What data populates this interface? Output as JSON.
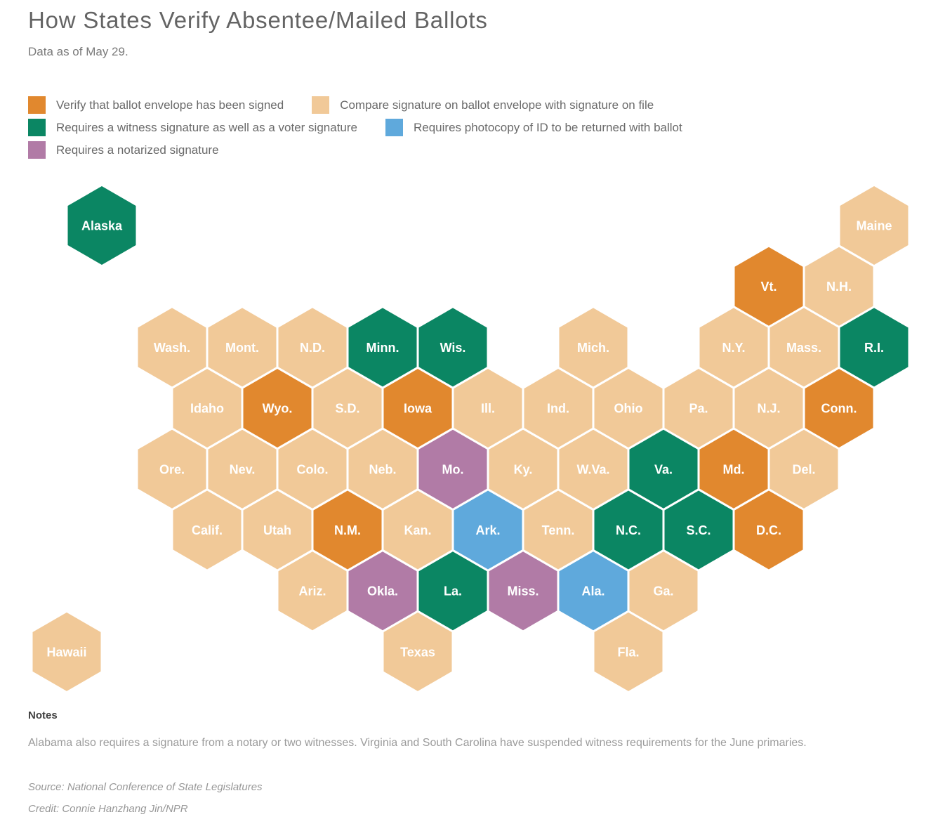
{
  "header": {
    "title": "How States Verify Absentee/Mailed Ballots",
    "subtitle": "Data as of May 29."
  },
  "legend": {
    "items": [
      {
        "key": "envelope_signed",
        "label": "Verify that ballot envelope has been signed",
        "color": "#e1882e"
      },
      {
        "key": "signature_compare",
        "label": "Compare signature on ballot envelope with signature on file",
        "color": "#f1c998"
      },
      {
        "key": "witness_signature",
        "label": "Requires a witness signature as well as a voter signature",
        "color": "#0b8663"
      },
      {
        "key": "id_photocopy",
        "label": "Requires photocopy of ID to be returned with ballot",
        "color": "#5fa9dc"
      },
      {
        "key": "notarized_signature",
        "label": "Requires a notarized signature",
        "color": "#b17ba6"
      }
    ]
  },
  "chart_data": {
    "type": "hex_tile_map",
    "title": "How States Verify Absentee/Mailed Ballots",
    "legend_position": "top",
    "categories": {
      "envelope_signed": "Verify that ballot envelope has been signed",
      "signature_compare": "Compare signature on ballot envelope with signature on file",
      "witness_signature": "Requires a witness signature as well as a voter signature",
      "id_photocopy": "Requires photocopy of ID to be returned with ballot",
      "notarized_signature": "Requires a notarized signature"
    },
    "states": [
      {
        "label": "Alaska",
        "row": 0,
        "col": 1,
        "category": "witness_signature"
      },
      {
        "label": "Maine",
        "row": 0,
        "col": 12,
        "category": "signature_compare"
      },
      {
        "label": "Vt.",
        "row": 1,
        "col": 10,
        "category": "envelope_signed"
      },
      {
        "label": "N.H.",
        "row": 1,
        "col": 11,
        "category": "signature_compare"
      },
      {
        "label": "Wash.",
        "row": 2,
        "col": 2,
        "category": "signature_compare"
      },
      {
        "label": "Mont.",
        "row": 2,
        "col": 3,
        "category": "signature_compare"
      },
      {
        "label": "N.D.",
        "row": 2,
        "col": 4,
        "category": "signature_compare"
      },
      {
        "label": "Minn.",
        "row": 2,
        "col": 5,
        "category": "witness_signature"
      },
      {
        "label": "Wis.",
        "row": 2,
        "col": 6,
        "category": "witness_signature"
      },
      {
        "label": "Mich.",
        "row": 2,
        "col": 8,
        "category": "signature_compare"
      },
      {
        "label": "N.Y.",
        "row": 2,
        "col": 10,
        "category": "signature_compare"
      },
      {
        "label": "Mass.",
        "row": 2,
        "col": 11,
        "category": "signature_compare"
      },
      {
        "label": "R.I.",
        "row": 2,
        "col": 12,
        "category": "witness_signature"
      },
      {
        "label": "Idaho",
        "row": 3,
        "col": 2,
        "category": "signature_compare"
      },
      {
        "label": "Wyo.",
        "row": 3,
        "col": 3,
        "category": "envelope_signed"
      },
      {
        "label": "S.D.",
        "row": 3,
        "col": 4,
        "category": "signature_compare"
      },
      {
        "label": "Iowa",
        "row": 3,
        "col": 5,
        "category": "envelope_signed"
      },
      {
        "label": "Ill.",
        "row": 3,
        "col": 6,
        "category": "signature_compare"
      },
      {
        "label": "Ind.",
        "row": 3,
        "col": 7,
        "category": "signature_compare"
      },
      {
        "label": "Ohio",
        "row": 3,
        "col": 8,
        "category": "signature_compare"
      },
      {
        "label": "Pa.",
        "row": 3,
        "col": 9,
        "category": "signature_compare"
      },
      {
        "label": "N.J.",
        "row": 3,
        "col": 10,
        "category": "signature_compare"
      },
      {
        "label": "Conn.",
        "row": 3,
        "col": 11,
        "category": "envelope_signed"
      },
      {
        "label": "Ore.",
        "row": 4,
        "col": 2,
        "category": "signature_compare"
      },
      {
        "label": "Nev.",
        "row": 4,
        "col": 3,
        "category": "signature_compare"
      },
      {
        "label": "Colo.",
        "row": 4,
        "col": 4,
        "category": "signature_compare"
      },
      {
        "label": "Neb.",
        "row": 4,
        "col": 5,
        "category": "signature_compare"
      },
      {
        "label": "Mo.",
        "row": 4,
        "col": 6,
        "category": "notarized_signature"
      },
      {
        "label": "Ky.",
        "row": 4,
        "col": 7,
        "category": "signature_compare"
      },
      {
        "label": "W.Va.",
        "row": 4,
        "col": 8,
        "category": "signature_compare"
      },
      {
        "label": "Va.",
        "row": 4,
        "col": 9,
        "category": "witness_signature"
      },
      {
        "label": "Md.",
        "row": 4,
        "col": 10,
        "category": "envelope_signed"
      },
      {
        "label": "Del.",
        "row": 4,
        "col": 11,
        "category": "signature_compare"
      },
      {
        "label": "Calif.",
        "row": 5,
        "col": 2,
        "category": "signature_compare"
      },
      {
        "label": "Utah",
        "row": 5,
        "col": 3,
        "category": "signature_compare"
      },
      {
        "label": "N.M.",
        "row": 5,
        "col": 4,
        "category": "envelope_signed"
      },
      {
        "label": "Kan.",
        "row": 5,
        "col": 5,
        "category": "signature_compare"
      },
      {
        "label": "Ark.",
        "row": 5,
        "col": 6,
        "category": "id_photocopy"
      },
      {
        "label": "Tenn.",
        "row": 5,
        "col": 7,
        "category": "signature_compare"
      },
      {
        "label": "N.C.",
        "row": 5,
        "col": 8,
        "category": "witness_signature"
      },
      {
        "label": "S.C.",
        "row": 5,
        "col": 9,
        "category": "witness_signature"
      },
      {
        "label": "D.C.",
        "row": 5,
        "col": 10,
        "category": "envelope_signed"
      },
      {
        "label": "Ariz.",
        "row": 6,
        "col": 4,
        "category": "signature_compare"
      },
      {
        "label": "Okla.",
        "row": 6,
        "col": 5,
        "category": "notarized_signature"
      },
      {
        "label": "La.",
        "row": 6,
        "col": 6,
        "category": "witness_signature"
      },
      {
        "label": "Miss.",
        "row": 6,
        "col": 7,
        "category": "notarized_signature"
      },
      {
        "label": "Ala.",
        "row": 6,
        "col": 8,
        "category": "id_photocopy"
      },
      {
        "label": "Ga.",
        "row": 6,
        "col": 9,
        "category": "signature_compare"
      },
      {
        "label": "Hawaii",
        "row": 7,
        "col": 0,
        "category": "signature_compare"
      },
      {
        "label": "Texas",
        "row": 7,
        "col": 5,
        "category": "signature_compare"
      },
      {
        "label": "Fla.",
        "row": 7,
        "col": 8,
        "category": "signature_compare"
      }
    ]
  },
  "notes": {
    "heading": "Notes",
    "body": "Alabama also requires a signature from a notary or two witnesses. Virginia and South Carolina have suspended witness requirements for the June primaries.",
    "source": "Source: National Conference of State Legislatures",
    "credit": "Credit: Connie Hanzhang Jin/NPR"
  }
}
